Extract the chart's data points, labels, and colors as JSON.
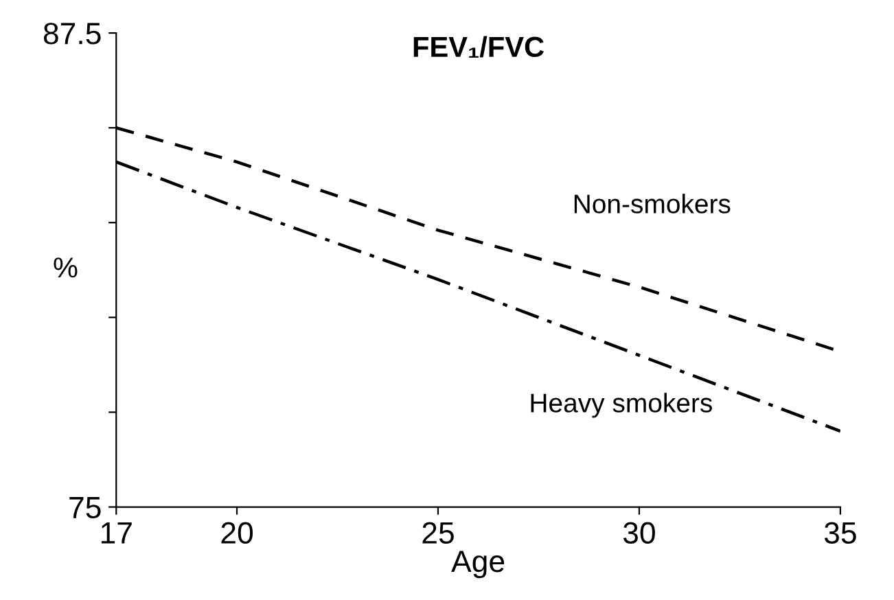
{
  "chart_data": {
    "type": "line",
    "title": "FEV₁/FVC",
    "xlabel": "Age",
    "ylabel": "%",
    "xlim": [
      17,
      35
    ],
    "xticks": [
      17,
      20,
      25,
      30,
      35
    ],
    "ylim": [
      75,
      87.5
    ],
    "yticks": [
      75,
      {
        "value": 77.5,
        "label": null
      },
      {
        "value": 80,
        "label": null
      },
      {
        "value": 82.5,
        "label": null
      },
      {
        "value": 85,
        "label": null
      },
      87.5
    ],
    "x": [
      17,
      20,
      25,
      30,
      35
    ],
    "series": [
      {
        "name": "Non-smokers",
        "color": "#000000",
        "line_style": "dashed",
        "values": [
          85.0,
          84.1,
          82.3,
          80.8,
          79.1
        ]
      },
      {
        "name": "Heavy smokers",
        "color": "#000000",
        "line_style": "dashdot",
        "values": [
          84.1,
          82.9,
          81.0,
          79.0,
          77.0
        ]
      }
    ],
    "grid": false,
    "legend": false,
    "marker": "none"
  }
}
